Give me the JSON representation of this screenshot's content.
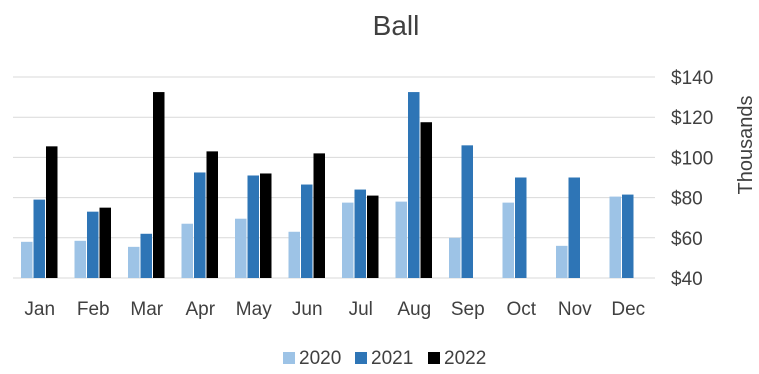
{
  "chart_data": {
    "type": "bar",
    "title": "Ball",
    "categories": [
      "Jan",
      "Feb",
      "Mar",
      "Apr",
      "May",
      "Jun",
      "Jul",
      "Aug",
      "Sep",
      "Oct",
      "Nov",
      "Dec"
    ],
    "series": [
      {
        "name": "2020",
        "color": "#9dc3e6",
        "values": [
          58,
          58.5,
          55.5,
          67,
          69.5,
          63,
          77.5,
          78,
          60,
          77.5,
          56,
          80.5
        ]
      },
      {
        "name": "2021",
        "color": "#2e75b6",
        "values": [
          79,
          73,
          62,
          92.5,
          91,
          86.5,
          84,
          132.5,
          106,
          90,
          90,
          81.5
        ]
      },
      {
        "name": "2022",
        "color": "#000000",
        "values": [
          105.5,
          75,
          132.5,
          103,
          92,
          102,
          81,
          117.5,
          null,
          null,
          null,
          null
        ]
      }
    ],
    "y_axis": {
      "ticks": [
        "$40",
        "$60",
        "$80",
        "$100",
        "$120",
        "$140"
      ],
      "tick_values": [
        40,
        60,
        80,
        100,
        120,
        140
      ],
      "ylim": [
        40,
        140
      ],
      "unit_label": "Thousands",
      "position": "right"
    },
    "grid": true,
    "legend_position": "bottom"
  }
}
